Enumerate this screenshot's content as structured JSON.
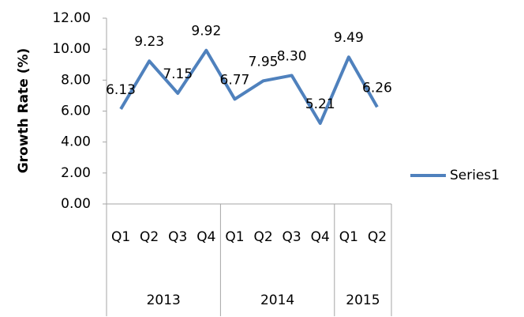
{
  "chart_data": {
    "type": "line",
    "y_axis_label": "Growth Rate (%)",
    "category_groups": [
      {
        "name": "2013",
        "categories": [
          "Q1",
          "Q2",
          "Q3",
          "Q4"
        ]
      },
      {
        "name": "2014",
        "categories": [
          "Q1",
          "Q2",
          "Q3",
          "Q4"
        ]
      },
      {
        "name": "2015",
        "categories": [
          "Q1",
          "Q2"
        ]
      }
    ],
    "series": [
      {
        "name": "Series1",
        "color": "#4f81bd",
        "values": [
          6.13,
          9.23,
          7.15,
          9.92,
          6.77,
          7.95,
          8.3,
          5.21,
          9.49,
          6.26
        ],
        "value_labels": [
          "6.13",
          "9.23",
          "7.15",
          "9.92",
          "6.77",
          "7.95",
          "8.30",
          "5.21",
          "9.49",
          "6.26"
        ]
      }
    ],
    "ylim": [
      0,
      12
    ],
    "yticks": [
      {
        "value": 0,
        "label": "0.00"
      },
      {
        "value": 2,
        "label": "2.00"
      },
      {
        "value": 4,
        "label": "4.00"
      },
      {
        "value": 6,
        "label": "6.00"
      },
      {
        "value": 8,
        "label": "8.00"
      },
      {
        "value": 10,
        "label": "10.00"
      },
      {
        "value": 12,
        "label": "12.00"
      }
    ],
    "legend": "right"
  }
}
